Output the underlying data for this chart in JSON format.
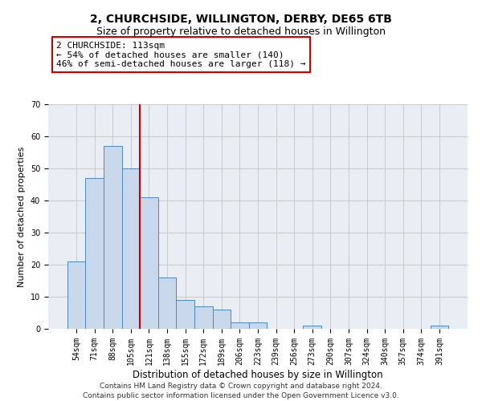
{
  "title": "2, CHURCHSIDE, WILLINGTON, DERBY, DE65 6TB",
  "subtitle": "Size of property relative to detached houses in Willington",
  "xlabel": "Distribution of detached houses by size in Willington",
  "ylabel": "Number of detached properties",
  "categories": [
    "54sqm",
    "71sqm",
    "88sqm",
    "105sqm",
    "121sqm",
    "138sqm",
    "155sqm",
    "172sqm",
    "189sqm",
    "206sqm",
    "223sqm",
    "239sqm",
    "256sqm",
    "273sqm",
    "290sqm",
    "307sqm",
    "324sqm",
    "340sqm",
    "357sqm",
    "374sqm",
    "391sqm"
  ],
  "values": [
    21,
    47,
    57,
    50,
    41,
    16,
    9,
    7,
    6,
    2,
    2,
    0,
    0,
    1,
    0,
    0,
    0,
    0,
    0,
    0,
    1
  ],
  "bar_color": "#c8d8ea",
  "bar_edge_color": "#4d88bb",
  "vline_x_index": 3.5,
  "vline_color": "#cc0000",
  "annotation_text": "2 CHURCHSIDE: 113sqm\n← 54% of detached houses are smaller (140)\n46% of semi-detached houses are larger (118) →",
  "annotation_box_facecolor": "#ffffff",
  "annotation_box_edgecolor": "#cc0000",
  "ylim": [
    0,
    70
  ],
  "yticks": [
    0,
    10,
    20,
    30,
    40,
    50,
    60,
    70
  ],
  "grid_color": "#cccccc",
  "bg_color": "#e8eef4",
  "footer_line1": "Contains HM Land Registry data © Crown copyright and database right 2024.",
  "footer_line2": "Contains public sector information licensed under the Open Government Licence v3.0.",
  "title_fontsize": 10,
  "subtitle_fontsize": 9,
  "xlabel_fontsize": 8.5,
  "ylabel_fontsize": 8,
  "tick_fontsize": 7,
  "annotation_fontsize": 8,
  "footer_fontsize": 6.5
}
